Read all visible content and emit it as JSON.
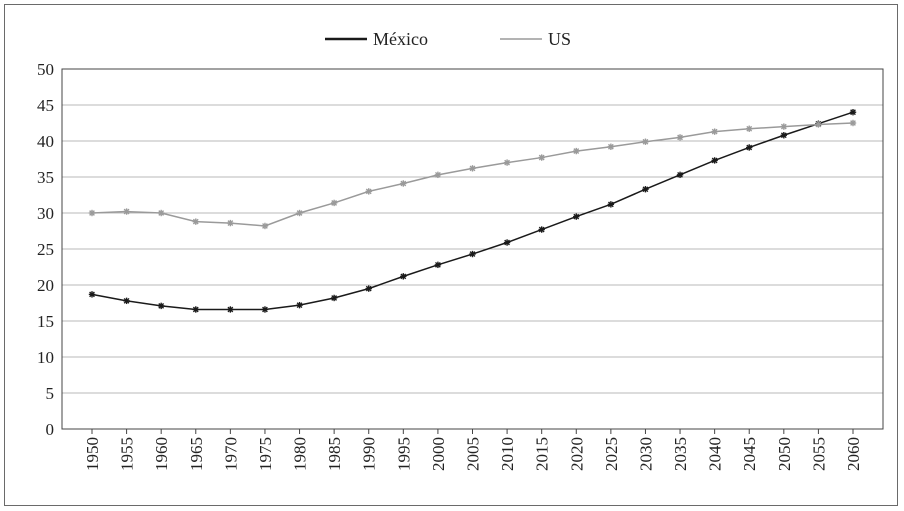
{
  "chart_data": {
    "type": "line",
    "title": "",
    "xlabel": "",
    "ylabel": "",
    "categories": [
      "1950",
      "1955",
      "1960",
      "1965",
      "1970",
      "1975",
      "1980",
      "1985",
      "1990",
      "1995",
      "2000",
      "2005",
      "2010",
      "2015",
      "2020",
      "2025",
      "2030",
      "2035",
      "2040",
      "2045",
      "2050",
      "2055",
      "2060"
    ],
    "ylim": [
      0,
      50
    ],
    "yticks": [
      0,
      5,
      10,
      15,
      20,
      25,
      30,
      35,
      40,
      45,
      50
    ],
    "grid": true,
    "legend_position": "top-center",
    "series": [
      {
        "name": "México",
        "color": "#1a1a1a",
        "values": [
          18.7,
          17.8,
          17.1,
          16.6,
          16.6,
          16.6,
          17.2,
          18.2,
          19.5,
          21.2,
          22.8,
          24.3,
          25.9,
          27.7,
          29.5,
          31.2,
          33.3,
          35.3,
          37.3,
          39.1,
          40.8,
          42.4,
          44.0
        ]
      },
      {
        "name": "US",
        "color": "#9a9a9a",
        "values": [
          30.0,
          30.2,
          30.0,
          28.8,
          28.6,
          28.2,
          30.0,
          31.4,
          33.0,
          34.1,
          35.3,
          36.2,
          37.0,
          37.7,
          38.6,
          39.2,
          39.9,
          40.5,
          41.3,
          41.7,
          42.0,
          42.3,
          42.5
        ]
      }
    ]
  }
}
